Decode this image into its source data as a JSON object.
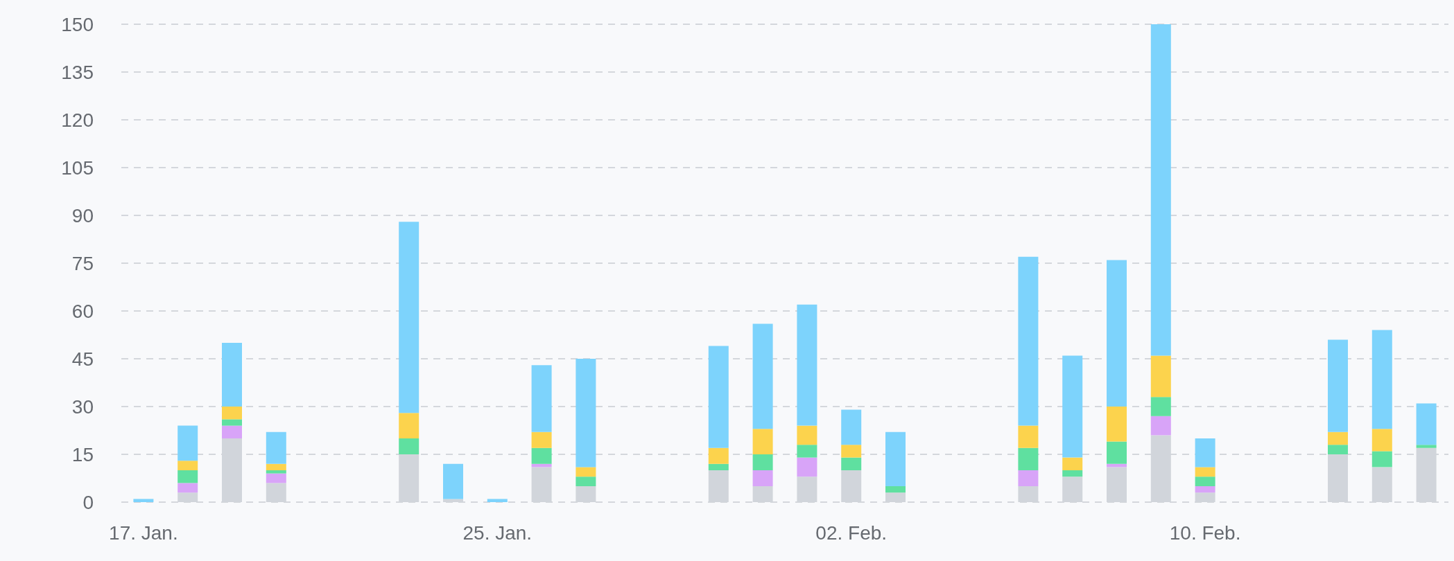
{
  "chart_data": {
    "type": "bar",
    "stacked": true,
    "grid": "y",
    "categories": [
      "17. Jan.",
      null,
      null,
      null,
      null,
      null,
      null,
      null,
      "25. Jan.",
      null,
      null,
      null,
      null,
      null,
      null,
      null,
      "02. Feb.",
      null,
      null,
      null,
      null,
      null,
      null,
      null,
      "10. Feb.",
      null,
      null,
      null,
      null,
      null
    ],
    "ylim": [
      0,
      150
    ],
    "yticks": [
      0,
      15,
      30,
      45,
      60,
      75,
      90,
      105,
      120,
      135,
      150
    ],
    "series": [
      {
        "color": "#d1d5db",
        "values": [
          0,
          3,
          20,
          6,
          null,
          null,
          15,
          1,
          0,
          11,
          5,
          null,
          null,
          10,
          5,
          8,
          10,
          3,
          null,
          null,
          5,
          8,
          11,
          21,
          3,
          null,
          null,
          15,
          11,
          17
        ]
      },
      {
        "color": "#d8a4f8",
        "values": [
          0,
          3,
          4,
          3,
          null,
          null,
          0,
          0,
          0,
          1,
          0,
          null,
          null,
          0,
          5,
          6,
          0,
          0,
          null,
          null,
          5,
          0,
          1,
          6,
          2,
          null,
          null,
          0,
          0,
          0
        ]
      },
      {
        "color": "#5fe0a0",
        "values": [
          0,
          4,
          2,
          1,
          null,
          null,
          5,
          0,
          0,
          5,
          3,
          null,
          null,
          2,
          5,
          4,
          4,
          2,
          null,
          null,
          7,
          2,
          7,
          6,
          3,
          null,
          null,
          3,
          5,
          1
        ]
      },
      {
        "color": "#fcd34d",
        "values": [
          0,
          3,
          4,
          2,
          null,
          null,
          8,
          0,
          0,
          5,
          3,
          null,
          null,
          5,
          8,
          6,
          4,
          0,
          null,
          null,
          7,
          4,
          11,
          13,
          3,
          null,
          null,
          4,
          7,
          0
        ]
      },
      {
        "color": "#7dd3fc",
        "values": [
          1,
          11,
          20,
          10,
          null,
          null,
          60,
          11,
          1,
          21,
          34,
          null,
          null,
          32,
          33,
          38,
          11,
          17,
          null,
          null,
          53,
          32,
          46,
          104,
          9,
          null,
          null,
          29,
          31,
          13
        ]
      }
    ]
  }
}
